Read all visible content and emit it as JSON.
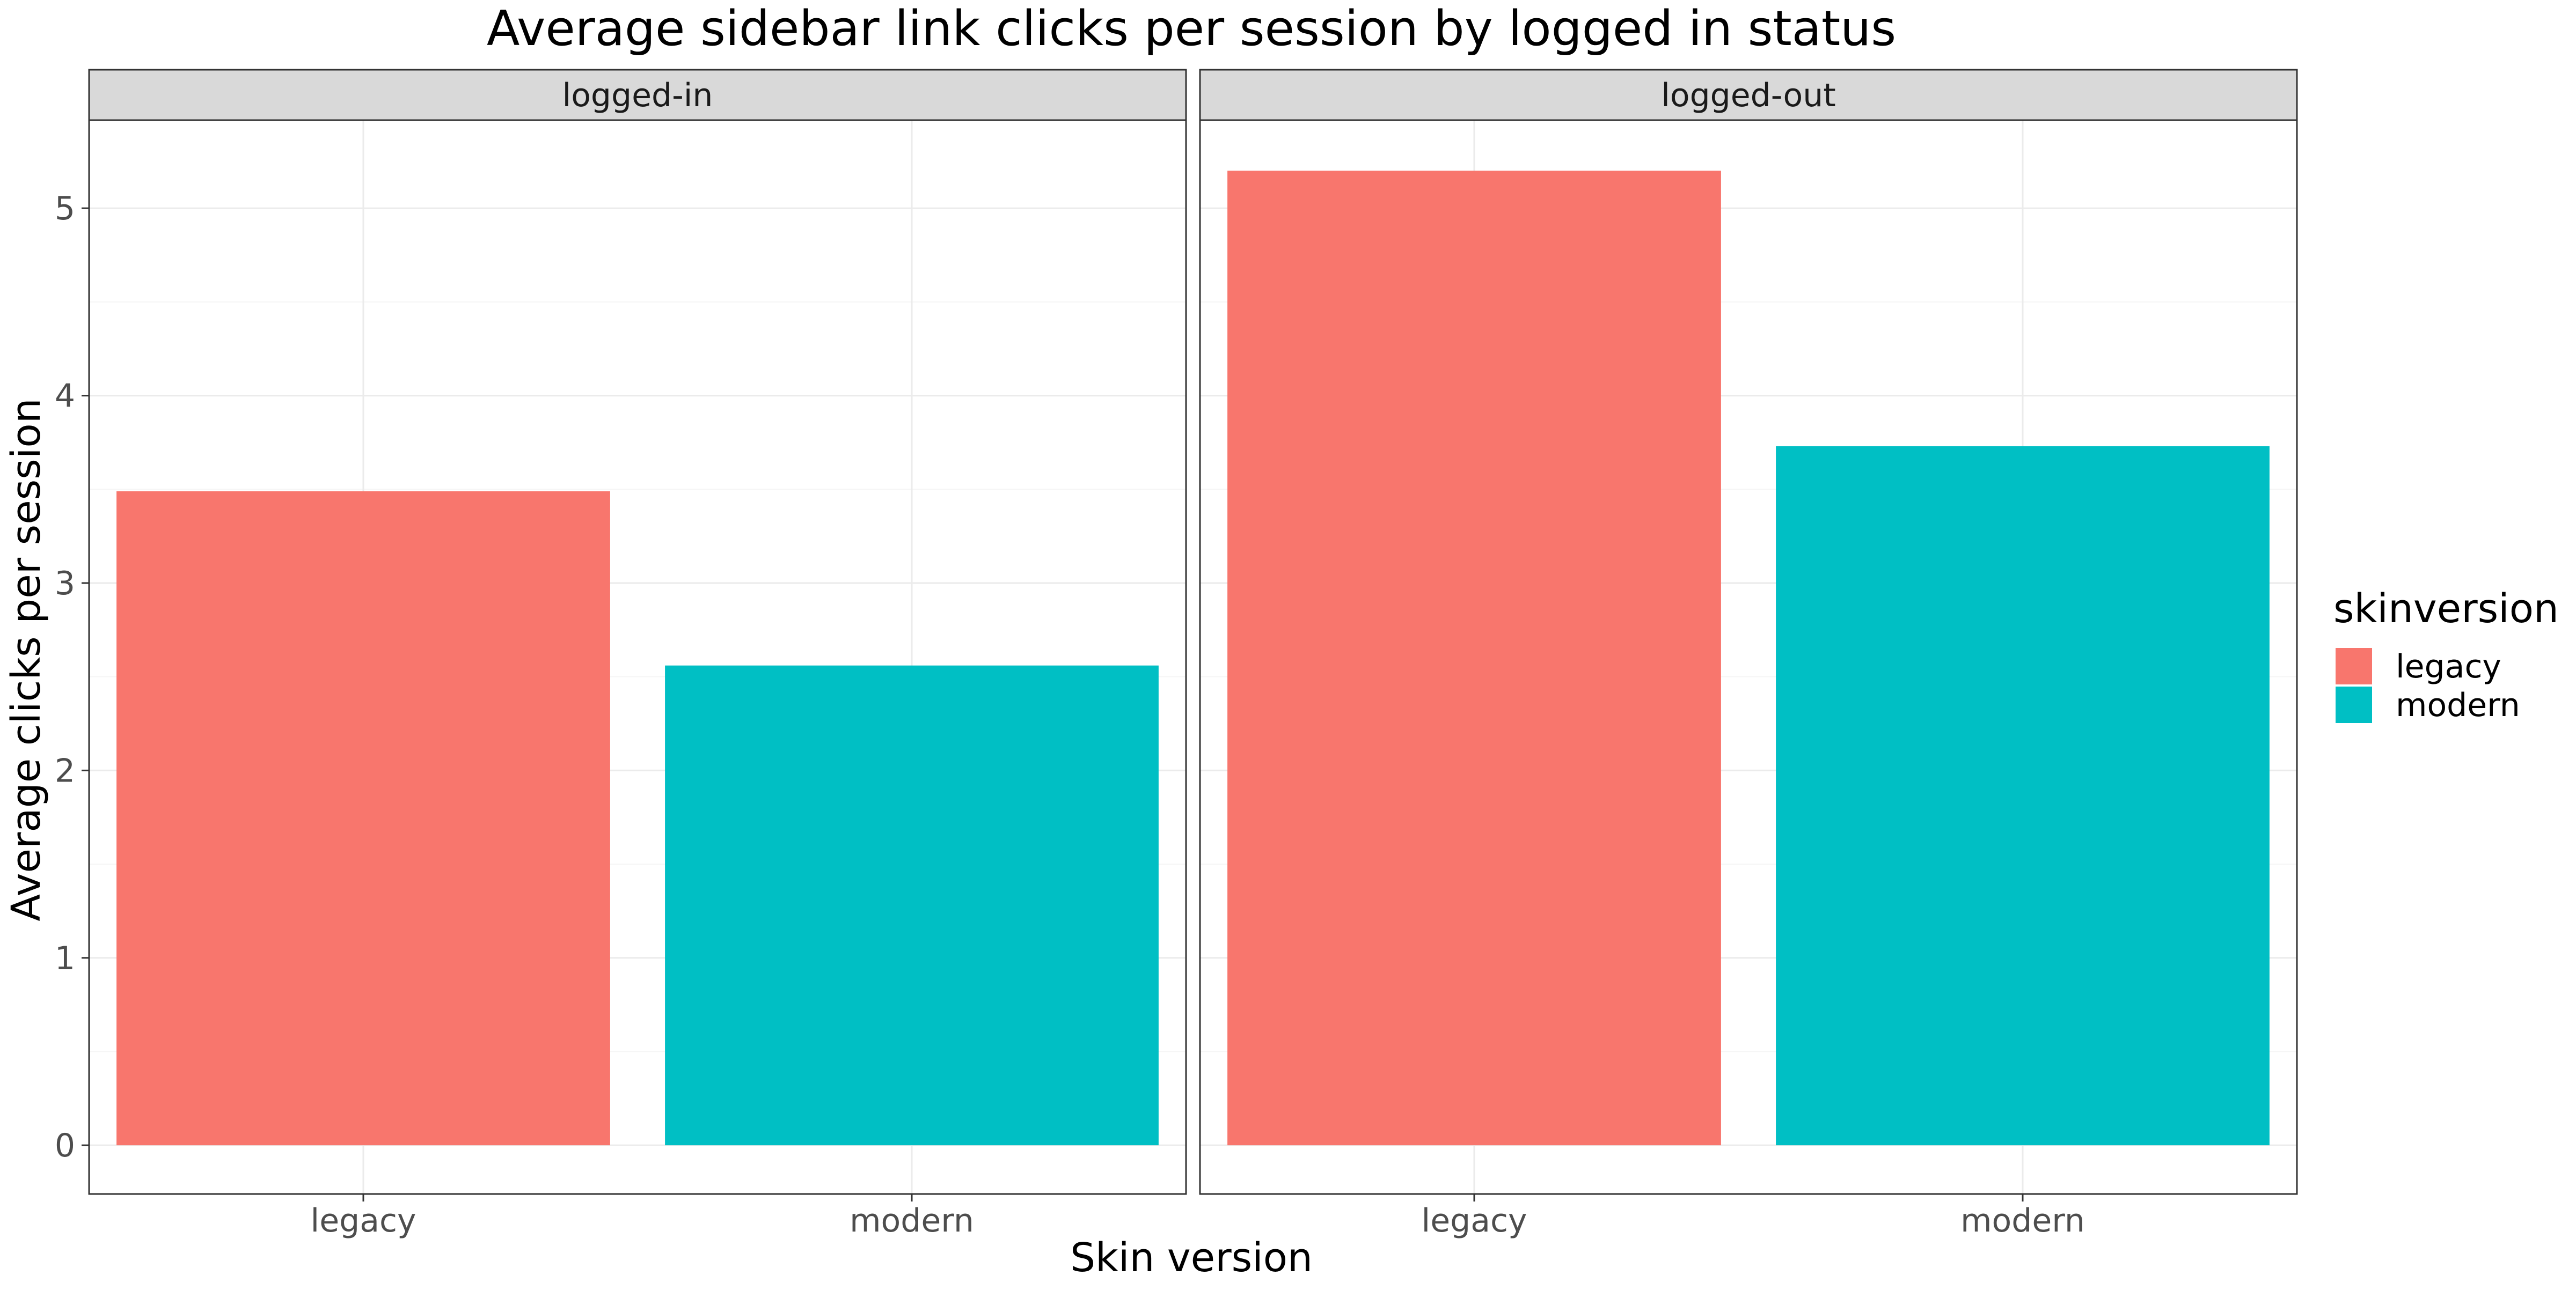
{
  "chart_data": {
    "type": "bar",
    "title": "Average sidebar link clicks per session by logged in status",
    "xlabel": "Skin version",
    "ylabel": "Average clicks per session",
    "categories": [
      "legacy",
      "modern"
    ],
    "facets": [
      {
        "label": "logged-in",
        "values": [
          3.49,
          2.56
        ]
      },
      {
        "label": "logged-out",
        "values": [
          5.2,
          3.73
        ]
      }
    ],
    "ylim": [
      -0.26,
      5.47
    ],
    "yticks": [
      0,
      1,
      2,
      3,
      4,
      5
    ],
    "legend": {
      "title": "skinversion",
      "position": "right",
      "items": [
        {
          "label": "legacy",
          "color": "#F8766D"
        },
        {
          "label": "modern",
          "color": "#00BFC4"
        }
      ]
    },
    "grid": true,
    "colors": {
      "legacy": "#F8766D",
      "modern": "#00BFC4",
      "strip_fill": "#D9D9D9",
      "panel_border": "#333333",
      "grid_major": "#EBEBEB",
      "grid_minor": "#F5F5F5"
    }
  }
}
